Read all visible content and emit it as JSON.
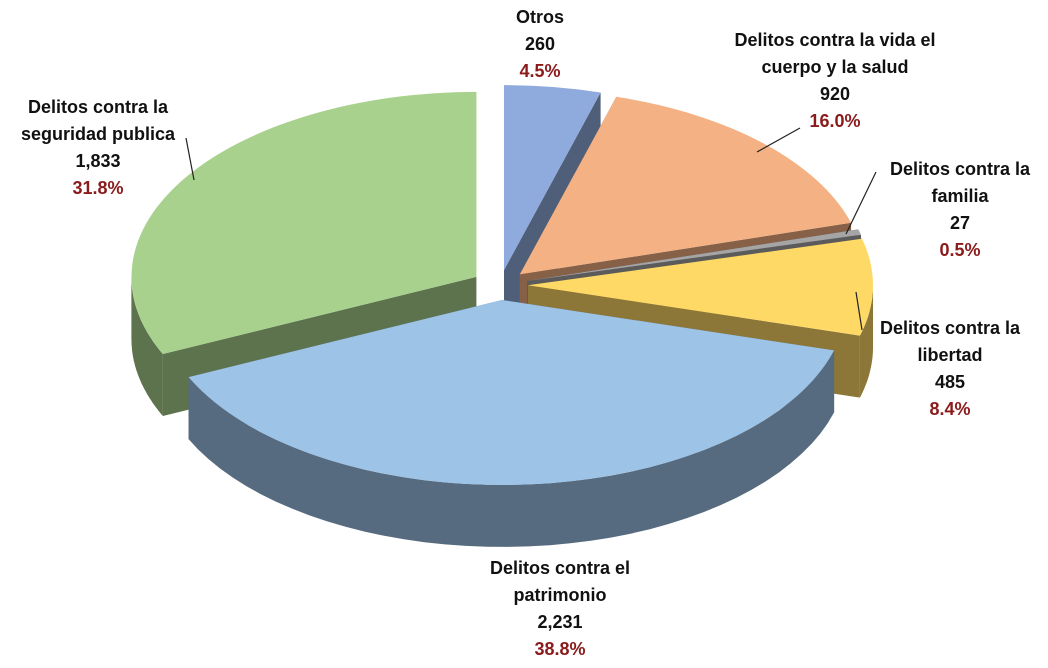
{
  "chart_data": {
    "type": "pie3d",
    "categories": [
      "Otros",
      "Delitos contra la vida el cuerpo y la salud",
      "Delitos contra la familia",
      "Delitos contra la libertad",
      "Delitos contra el patrimonio",
      "Delitos contra la seguridad publica"
    ],
    "values": [
      260,
      920,
      27,
      485,
      2231,
      1833
    ],
    "value_labels": [
      "260",
      "920",
      "27",
      "485",
      "2,231",
      "1,833"
    ],
    "percentages": [
      4.5,
      16.0,
      0.5,
      8.4,
      38.8,
      31.8
    ],
    "percentage_labels": [
      "4.5%",
      "16.0%",
      "0.5%",
      "8.4%",
      "38.8%",
      "31.8%"
    ],
    "colors": [
      "#8faadc",
      "#f4b183",
      "#a5a5a5",
      "#ffd966",
      "#9dc3e6",
      "#a9d18e"
    ]
  }
}
